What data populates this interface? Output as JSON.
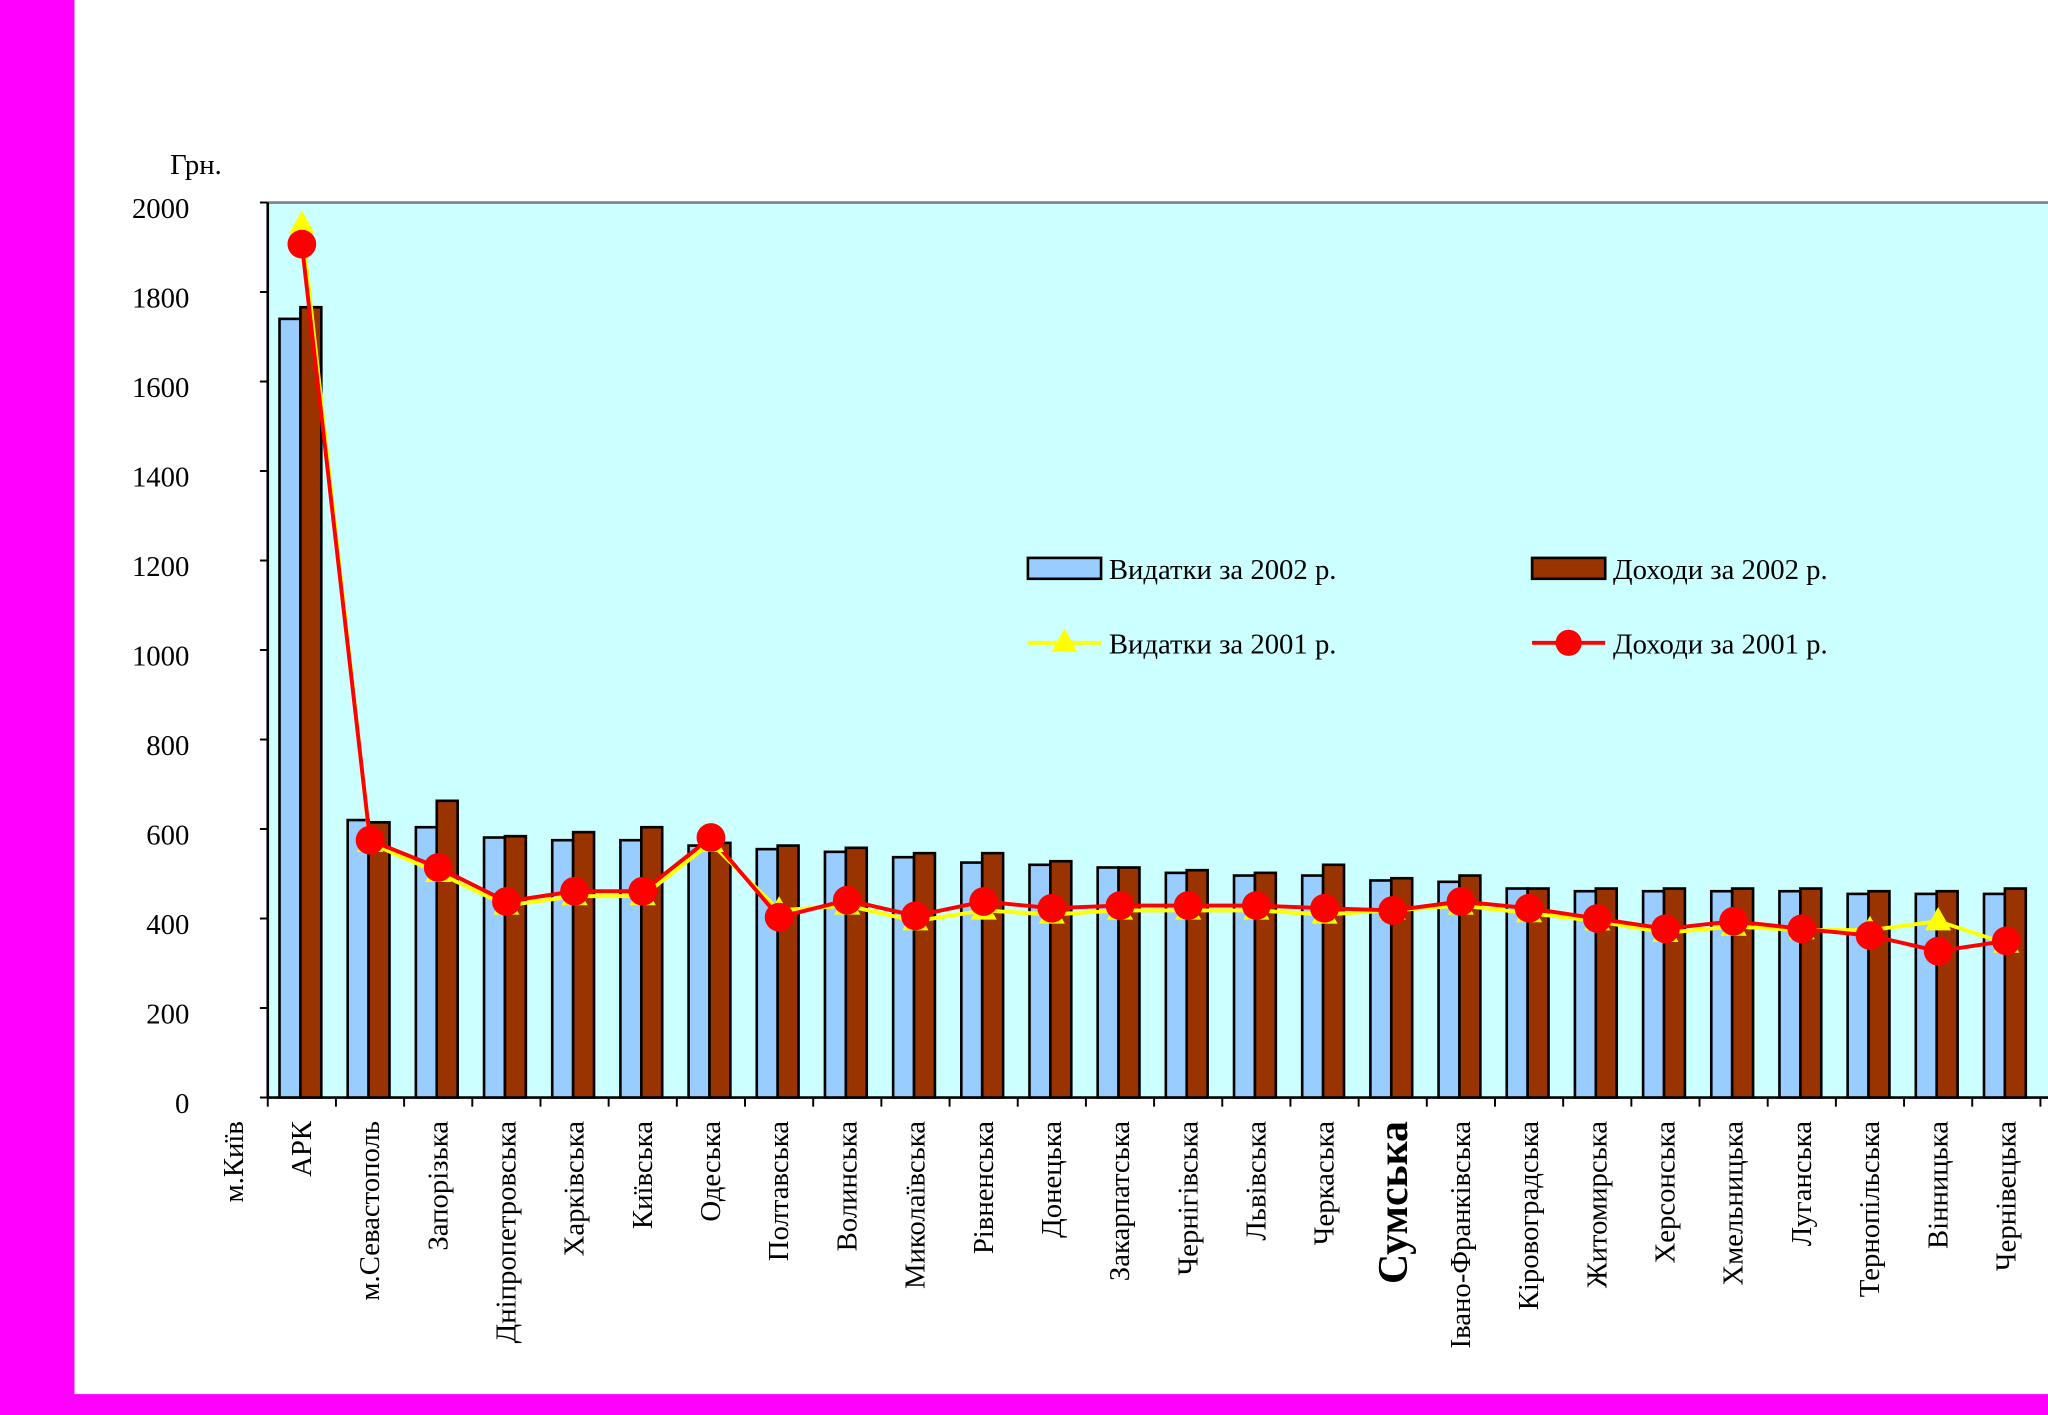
{
  "chart_data": {
    "type": "bar",
    "y_axis_label": "Грн.",
    "categories": [
      "м.Київ",
      "АРК",
      "м.Севастополь",
      "Запорізька",
      "Дніпропетровська",
      "Харківська",
      "Київська",
      "Одеська",
      "Полтавська",
      "Волинська",
      "Миколаївська",
      "Рівненська",
      "Донецька",
      "Закарпатська",
      "Чернігівська",
      "Львівська",
      "Черкаська",
      "Сумська",
      "Івано-Франківська",
      "Кіровоградська",
      "Житомирська",
      "Херсонська",
      "Хмельницька",
      "Луганська",
      "Тернопільська",
      "Вінницька",
      "Чернівецька"
    ],
    "series": [
      {
        "name": "Видатки за 2002 р.",
        "kind": "bar",
        "color": "#99ccff",
        "values": [
          null,
          1740,
          620,
          604,
          581,
          575,
          575,
          563,
          555,
          549,
          537,
          525,
          520,
          514,
          502,
          496,
          496,
          485,
          482,
          467,
          461,
          461,
          461,
          461,
          455,
          455,
          455
        ]
      },
      {
        "name": "Доходи за 2002 р.",
        "kind": "bar",
        "color": "#993300",
        "values": [
          null,
          1766,
          615,
          663,
          584,
          593,
          604,
          569,
          563,
          558,
          546,
          546,
          528,
          514,
          508,
          502,
          520,
          490,
          496,
          467,
          467,
          467,
          467,
          467,
          461,
          461,
          467
        ]
      },
      {
        "name": "Видатки за 2001 р.",
        "kind": "line",
        "marker": "triangle",
        "color": "#ffff00",
        "values": [
          null,
          1950,
          569,
          502,
          429,
          450,
          450,
          569,
          418,
          429,
          394,
          418,
          409,
          418,
          418,
          418,
          409,
          418,
          429,
          412,
          394,
          368,
          382,
          374,
          374,
          394,
          344
        ]
      },
      {
        "name": "Доходи за 2001 р.",
        "kind": "line",
        "marker": "circle",
        "color": "#ff0000",
        "values": [
          null,
          1907,
          575,
          514,
          438,
          461,
          461,
          581,
          403,
          441,
          406,
          438,
          423,
          429,
          429,
          429,
          423,
          418,
          438,
          423,
          400,
          377,
          394,
          377,
          362,
          327,
          350
        ]
      }
    ],
    "ylim": [
      0,
      2000
    ],
    "yticks": [
      0,
      200,
      400,
      600,
      800,
      1000,
      1200,
      1400,
      1600,
      1800,
      2000
    ],
    "plot_background": "#ccffff",
    "legend": "center"
  }
}
